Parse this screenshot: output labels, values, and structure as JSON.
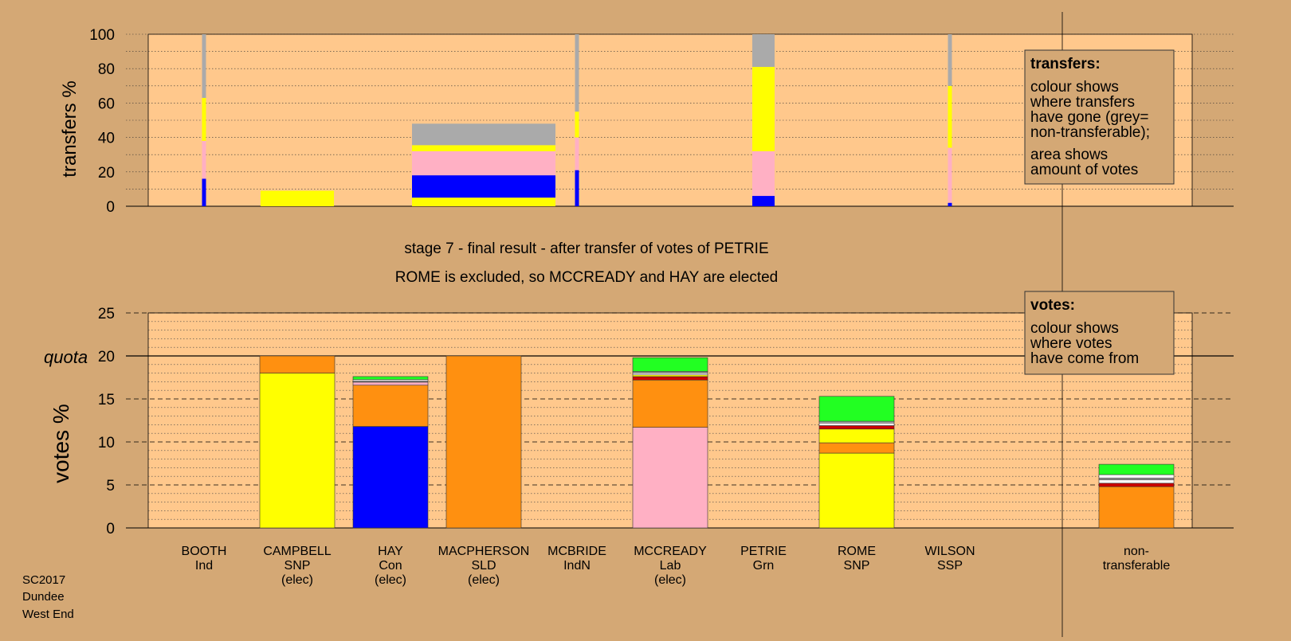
{
  "colors": {
    "page_bg": "#d4a875",
    "plot_bg": "#ffc88c",
    "grey": "#aaaaaa",
    "yellow": "#ffff00",
    "pink": "#ffb0c4",
    "blue": "#0000ff",
    "orange": "#ff9010",
    "green": "#22ff22",
    "red": "#cc0000",
    "white": "#ffffff"
  },
  "stage_text": {
    "line1": "stage 7 - final result - after transfer of votes of PETRIE",
    "line2": "ROME is excluded, so MCCREADY and HAY are elected"
  },
  "legend_transfers": {
    "title": "transfers:",
    "lines": [
      "colour shows",
      "where transfers",
      "have gone (grey=",
      "non-transferable);",
      "area shows",
      "amount of votes"
    ]
  },
  "legend_votes": {
    "title": "votes:",
    "lines": [
      "colour shows",
      "where votes",
      "have come from"
    ]
  },
  "footer": [
    "SC2017",
    "Dundee",
    "West End"
  ],
  "candidates": [
    {
      "name": "BOOTH",
      "party": "Ind",
      "status": ""
    },
    {
      "name": "CAMPBELL",
      "party": "SNP",
      "status": "(elec)"
    },
    {
      "name": "HAY",
      "party": "Con",
      "status": "(elec)"
    },
    {
      "name": "MACPHERSON",
      "party": "SLD",
      "status": "(elec)"
    },
    {
      "name": "MCBRIDE",
      "party": "IndN",
      "status": ""
    },
    {
      "name": "MCCREADY",
      "party": "Lab",
      "status": "(elec)"
    },
    {
      "name": "PETRIE",
      "party": "Grn",
      "status": ""
    },
    {
      "name": "ROME",
      "party": "SNP",
      "status": ""
    },
    {
      "name": "WILSON",
      "party": "SSP",
      "status": ""
    },
    {
      "name": "non-",
      "party": "transferable",
      "status": ""
    }
  ],
  "chart_data": [
    {
      "type": "bar",
      "ylabel": "transfers %",
      "ylim": [
        0,
        100
      ],
      "yticks": [
        0,
        20,
        40,
        60,
        80,
        100
      ],
      "grid": "dotted",
      "legend_placement": "top-right",
      "transfers": [
        {
          "from": "BOOTH",
          "width_share": 0.4,
          "stack": [
            {
              "c": "blue",
              "v": 16
            },
            {
              "c": "pink",
              "v": 22
            },
            {
              "c": "yellow",
              "v": 25
            },
            {
              "c": "grey",
              "v": 37
            }
          ]
        },
        {
          "from": "CAMPBELL",
          "width_share": 1.0,
          "stack": [
            {
              "c": "yellow",
              "v": 9
            }
          ]
        },
        {
          "from": "MACPHERSON",
          "width_share": 1.0,
          "stack": [
            {
              "c": "yellow",
              "v": 5
            },
            {
              "c": "blue",
              "v": 13
            },
            {
              "c": "pink",
              "v": 14
            },
            {
              "c": "yellow",
              "v": 3.5
            },
            {
              "c": "grey",
              "v": 12.5
            }
          ]
        },
        {
          "from": "MCBRIDE",
          "width_share": 0.4,
          "stack": [
            {
              "c": "blue",
              "v": 21
            },
            {
              "c": "pink",
              "v": 19
            },
            {
              "c": "yellow",
              "v": 15
            },
            {
              "c": "grey",
              "v": 45
            }
          ]
        },
        {
          "from": "PETRIE",
          "width_share": 0.9,
          "stack": [
            {
              "c": "blue",
              "v": 6
            },
            {
              "c": "pink",
              "v": 26
            },
            {
              "c": "yellow",
              "v": 49
            },
            {
              "c": "grey",
              "v": 19
            }
          ]
        },
        {
          "from": "WILSON",
          "width_share": 0.4,
          "stack": [
            {
              "c": "blue",
              "v": 2
            },
            {
              "c": "pink",
              "v": 32
            },
            {
              "c": "yellow",
              "v": 36
            },
            {
              "c": "grey",
              "v": 30
            }
          ]
        }
      ]
    },
    {
      "type": "bar",
      "ylabel": "votes %",
      "ylim": [
        0,
        25
      ],
      "yticks": [
        0,
        5,
        10,
        15,
        20,
        25
      ],
      "quota": 20,
      "quota_label": "quota",
      "grid": "dashed",
      "legend_placement": "top-right",
      "votes": [
        {
          "candidate": "BOOTH",
          "stack": []
        },
        {
          "candidate": "CAMPBELL",
          "stack": [
            {
              "c": "yellow",
              "v": 18
            },
            {
              "c": "orange",
              "v": 2
            }
          ]
        },
        {
          "candidate": "HAY",
          "stack": [
            {
              "c": "blue",
              "v": 11.8
            },
            {
              "c": "orange",
              "v": 4.8
            },
            {
              "c": "pink",
              "v": 0.35
            },
            {
              "c": "grey",
              "v": 0.15
            },
            {
              "c": "white",
              "v": 0.15
            },
            {
              "c": "green",
              "v": 0.35
            }
          ]
        },
        {
          "candidate": "MACPHERSON",
          "stack": [
            {
              "c": "orange",
              "v": 20
            }
          ]
        },
        {
          "candidate": "MCBRIDE",
          "stack": []
        },
        {
          "candidate": "MCCREADY",
          "stack": [
            {
              "c": "pink",
              "v": 11.7
            },
            {
              "c": "orange",
              "v": 5.5
            },
            {
              "c": "red",
              "v": 0.4
            },
            {
              "c": "yellow",
              "v": 0.2
            },
            {
              "c": "white",
              "v": 0.2
            },
            {
              "c": "grey",
              "v": 0.2
            },
            {
              "c": "green",
              "v": 1.6
            }
          ]
        },
        {
          "candidate": "PETRIE",
          "stack": []
        },
        {
          "candidate": "ROME",
          "stack": [
            {
              "c": "yellow",
              "v": 8.7
            },
            {
              "c": "orange",
              "v": 1.2
            },
            {
              "c": "yellow",
              "v": 1.6
            },
            {
              "c": "red",
              "v": 0.4
            },
            {
              "c": "white",
              "v": 0.3
            },
            {
              "c": "grey",
              "v": 0.2
            },
            {
              "c": "green",
              "v": 2.9
            }
          ]
        },
        {
          "candidate": "WILSON",
          "stack": []
        },
        {
          "candidate": "non-transferable",
          "stack": [
            {
              "c": "orange",
              "v": 4.8
            },
            {
              "c": "red",
              "v": 0.4
            },
            {
              "c": "white",
              "v": 0.4
            },
            {
              "c": "grey",
              "v": 0.2
            },
            {
              "c": "white",
              "v": 0.4
            },
            {
              "c": "green",
              "v": 1.2
            }
          ]
        }
      ]
    }
  ]
}
